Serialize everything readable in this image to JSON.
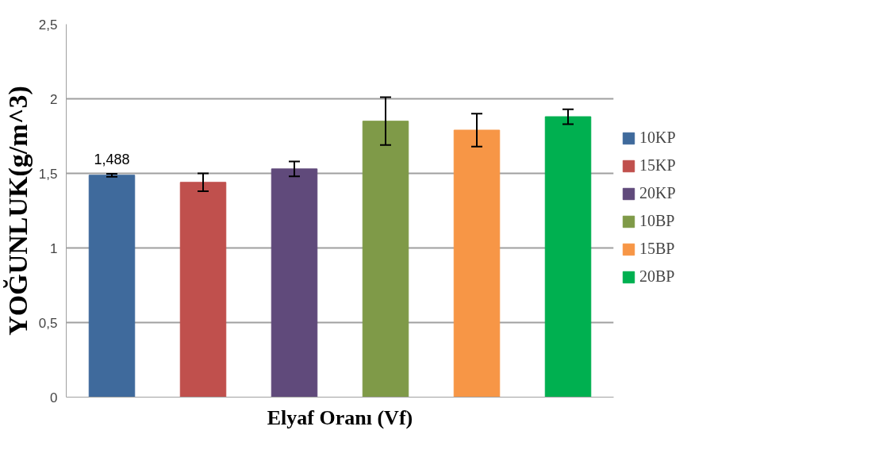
{
  "chart_data": {
    "type": "bar",
    "xlabel": "Elyaf Oranı (Vf)",
    "ylabel": "YOĞUNLUK(g/m^3)",
    "categories": [
      null
    ],
    "series": [
      {
        "name": "10KP",
        "color": "#3f6a9c",
        "values": [
          1.488
        ],
        "errors": [
          0.01
        ]
      },
      {
        "name": "15KP",
        "color": "#c0504d",
        "values": [
          1.44
        ],
        "errors": [
          0.06
        ]
      },
      {
        "name": "20KP",
        "color": "#604a7b",
        "values": [
          1.53
        ],
        "errors": [
          0.05
        ]
      },
      {
        "name": "10BP",
        "color": "#7f9a48",
        "values": [
          1.85
        ],
        "errors": [
          0.16
        ]
      },
      {
        "name": "15BP",
        "color": "#f79646",
        "values": [
          1.79
        ],
        "errors": [
          0.11
        ]
      },
      {
        "name": "20BP",
        "color": "#00b050",
        "values": [
          1.88
        ],
        "errors": [
          0.05
        ]
      }
    ],
    "ylim": [
      0,
      2.5
    ],
    "yticks": [
      0,
      {
        "value": 0.5,
        "label": "0,5"
      },
      1,
      {
        "value": 1.5,
        "label": "1,5"
      },
      2,
      {
        "value": 2.5,
        "label": "2,5"
      }
    ],
    "grid": "y",
    "legend": "right",
    "annotations": [
      {
        "text": "1,488",
        "y": 1.488
      }
    ]
  }
}
